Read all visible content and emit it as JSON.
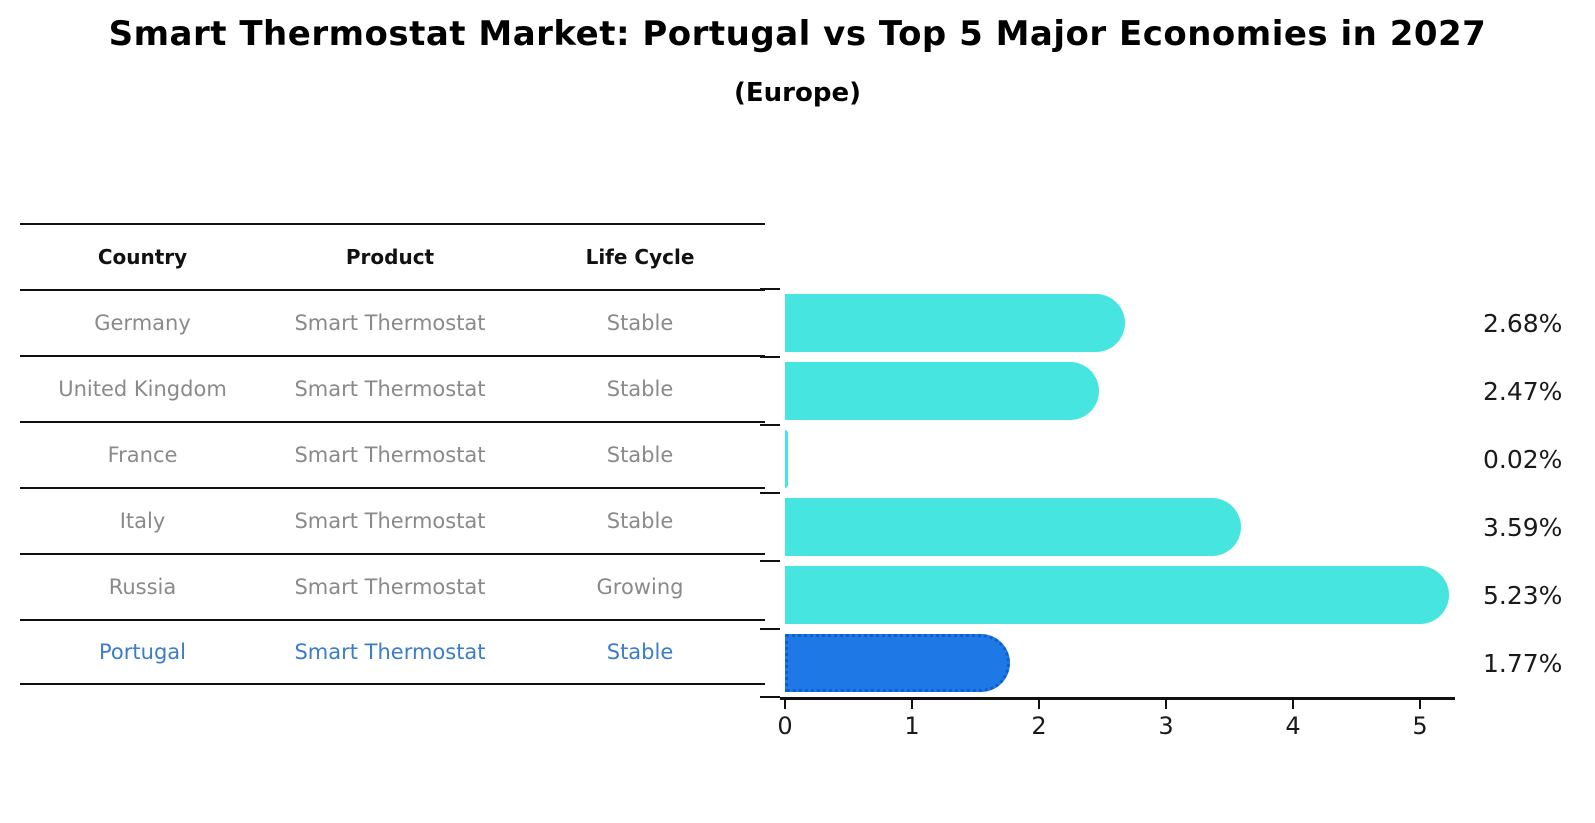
{
  "title": "Smart Thermostat Market: Portugal vs Top 5 Major Economies in 2027",
  "subtitle": "(Europe)",
  "table": {
    "headers": [
      "Country",
      "Product",
      "Life Cycle"
    ],
    "rows": [
      {
        "country": "Germany",
        "product": "Smart Thermostat",
        "life_cycle": "Stable",
        "highlight": false
      },
      {
        "country": "United Kingdom",
        "product": "Smart Thermostat",
        "life_cycle": "Stable",
        "highlight": false
      },
      {
        "country": "France",
        "product": "Smart Thermostat",
        "life_cycle": "Stable",
        "highlight": false
      },
      {
        "country": "Italy",
        "product": "Smart Thermostat",
        "life_cycle": "Stable",
        "highlight": false
      },
      {
        "country": "Russia",
        "product": "Smart Thermostat",
        "life_cycle": "Growing",
        "highlight": false
      },
      {
        "country": "Portugal",
        "product": "Smart Thermostat",
        "life_cycle": "Stable",
        "highlight": true
      }
    ]
  },
  "chart_data": {
    "type": "bar",
    "orientation": "horizontal",
    "title": "Smart Thermostat Market: Portugal vs Top 5 Major Economies in 2027",
    "subtitle": "(Europe)",
    "categories": [
      "Germany",
      "United Kingdom",
      "France",
      "Italy",
      "Russia",
      "Portugal"
    ],
    "values": [
      2.68,
      2.47,
      0.02,
      3.59,
      5.23,
      1.77
    ],
    "value_labels": [
      "2.68%",
      "2.47%",
      "0.02%",
      "3.59%",
      "5.23%",
      "1.77%"
    ],
    "xlabel": "",
    "ylabel": "",
    "xlim": [
      0,
      5.28
    ],
    "xticks": [
      0,
      1,
      2,
      3,
      4,
      5
    ],
    "xtick_labels": [
      "0",
      "1",
      "2",
      "3",
      "4",
      "5"
    ],
    "grid": false,
    "legend": "none",
    "bar_style": "rounded-right-cap",
    "highlight_index": 5
  },
  "colors": {
    "bar": "#47e5df",
    "highlight_bar": "#1e79e6",
    "highlight_border": "#0d5ecf",
    "highlight_text": "#3b7dc9",
    "table_text": "#8a8a8a",
    "line": "#111111",
    "label_text": "#1a1a1a"
  }
}
